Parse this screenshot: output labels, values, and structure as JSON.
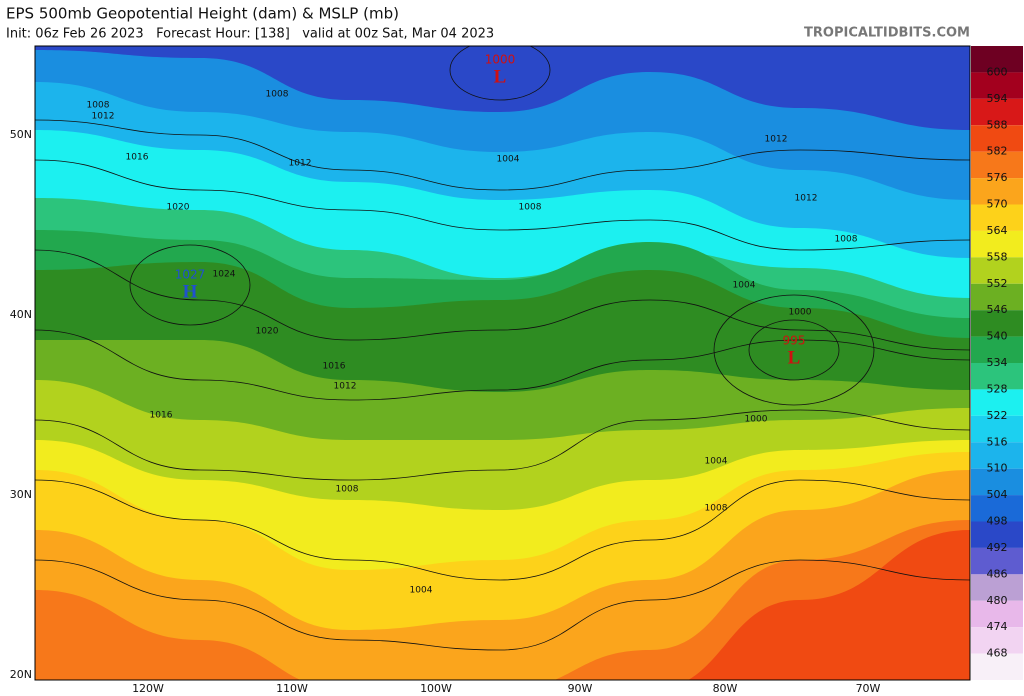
{
  "header": {
    "title": "EPS 500mb Geopotential Height (dam) & MSLP (mb)",
    "subtitle": "Init: 06z Feb 26 2023   Forecast Hour: [138]   valid at 00z Sat, Mar 04 2023",
    "credit": "TROPICALTIDBITS.COM"
  },
  "colorbar": {
    "labels": [
      "600",
      "594",
      "588",
      "582",
      "576",
      "570",
      "564",
      "558",
      "552",
      "546",
      "540",
      "534",
      "528",
      "522",
      "516",
      "510",
      "504",
      "498",
      "492",
      "486",
      "480",
      "474",
      "468"
    ],
    "colors": [
      "#6e0022",
      "#a3001e",
      "#d81818",
      "#f04a12",
      "#f7781a",
      "#fba51c",
      "#fdd21a",
      "#f2ec1e",
      "#b2d21e",
      "#6cb022",
      "#2e8c22",
      "#22a84e",
      "#2cc47c",
      "#1cf0f0",
      "#1cd0f0",
      "#1cb4ec",
      "#1a8ee0",
      "#1a6ad8",
      "#2a48c8",
      "#5e5cd0",
      "#bba0d4",
      "#e8b8ea",
      "#f2d4f2",
      "#f8f0f8",
      "#dedede",
      "#a8f0c8"
    ]
  },
  "latitudes": [
    "50N",
    "40N",
    "30N",
    "20N"
  ],
  "longitudes": [
    "120W",
    "110W",
    "100W",
    "90W",
    "80W",
    "70W"
  ],
  "pressure_centers": [
    {
      "letter": "L",
      "value": "1000"
    },
    {
      "letter": "H",
      "value": "1027"
    },
    {
      "letter": "L",
      "value": "995"
    }
  ],
  "isobar_labels": [
    "1008",
    "1012",
    "1008",
    "1016",
    "1012",
    "1004",
    "1008",
    "1020",
    "1024",
    "1012",
    "1012",
    "1008",
    "1004",
    "1000",
    "1020",
    "1016",
    "1012",
    "1016",
    "1000",
    "1004",
    "1008",
    "1008",
    "1004"
  ]
}
